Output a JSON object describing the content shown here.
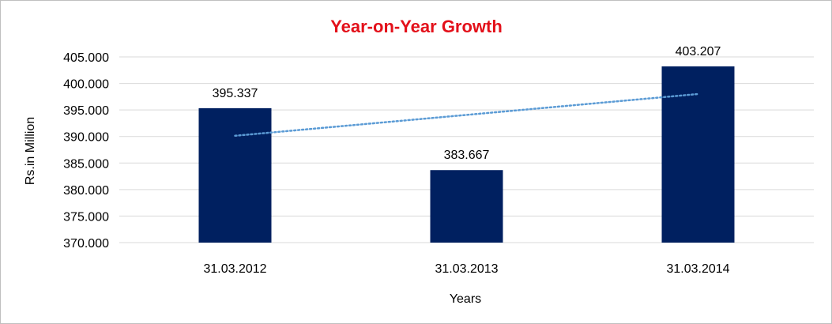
{
  "chart_data": {
    "type": "bar",
    "title": "Year-on-Year Growth",
    "xlabel": "Years",
    "ylabel": "Rs.in Million",
    "categories": [
      "31.03.2012",
      "31.03.2013",
      "31.03.2014"
    ],
    "values": [
      395.337,
      383.667,
      403.207
    ],
    "data_labels": [
      "395.337",
      "383.667",
      "403.207"
    ],
    "ylim": [
      370,
      405
    ],
    "yticks": [
      "405.000",
      "400.000",
      "395.000",
      "390.000",
      "385.000",
      "380.000",
      "375.000",
      "370.000"
    ],
    "ytick_values": [
      405,
      400,
      395,
      390,
      385,
      380,
      375,
      370
    ],
    "grid": true,
    "trendline": {
      "type": "linear",
      "style": "dotted",
      "color": "#5b9bd5"
    },
    "bar_color": "#002060",
    "title_color": "#e3101a",
    "legend": "none"
  }
}
